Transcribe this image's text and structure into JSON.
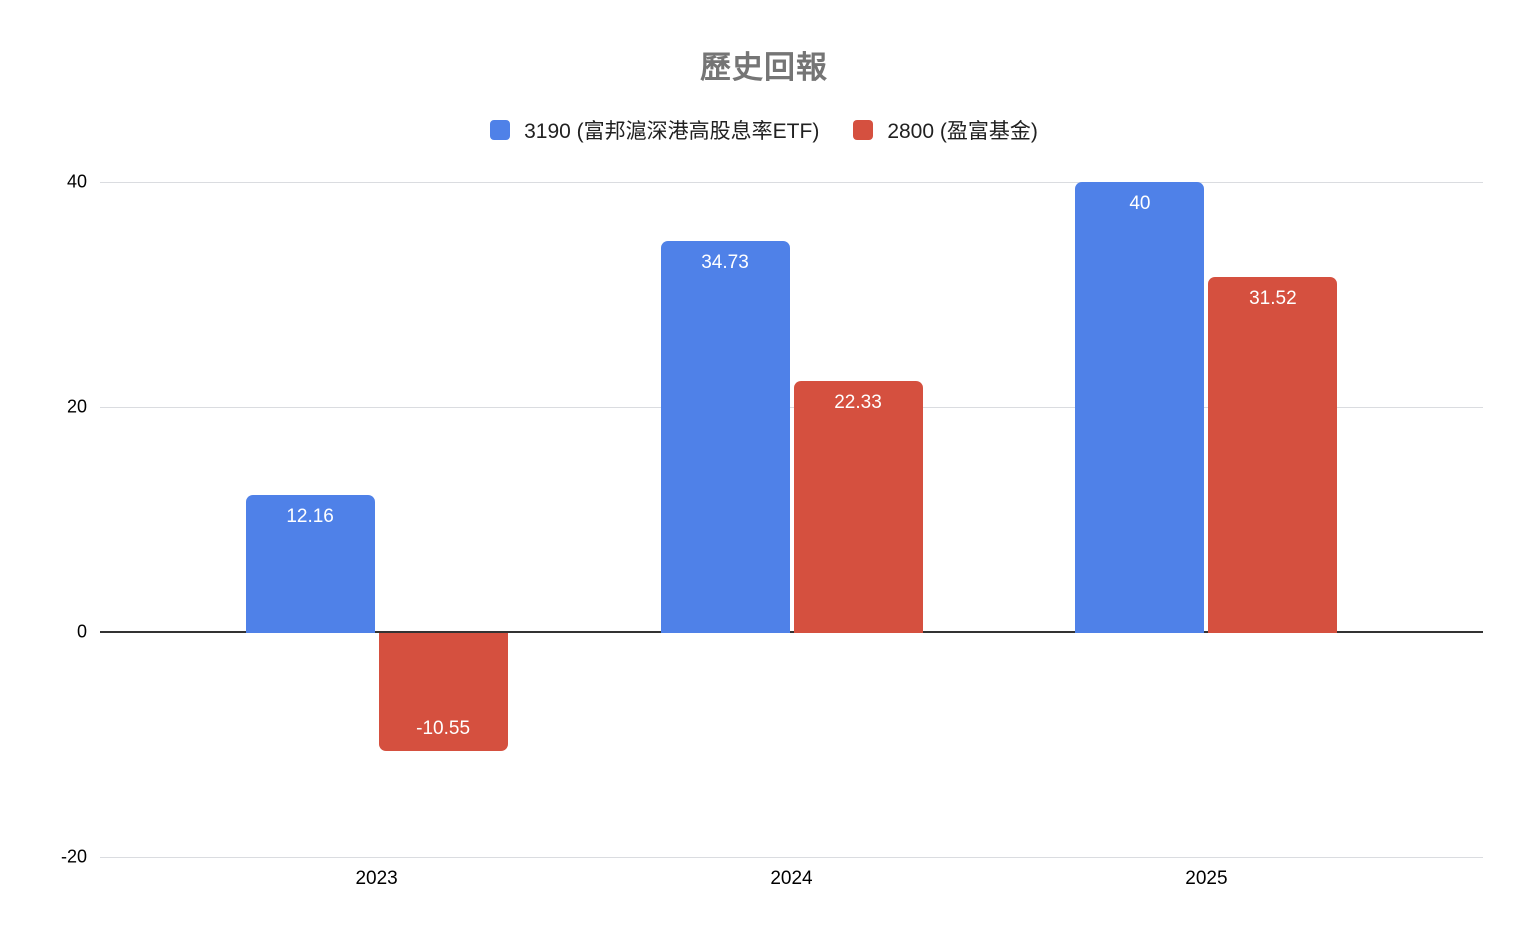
{
  "chart_data": {
    "type": "bar",
    "title": "歷史回報",
    "categories": [
      "2023",
      "2024",
      "2025"
    ],
    "series": [
      {
        "name": "3190 (富邦滬深港高股息率ETF)",
        "short_name": "3190",
        "color": "#4f81e8",
        "values": [
          12.16,
          34.73,
          40
        ],
        "value_labels": [
          "12.16",
          "34.73",
          "40"
        ]
      },
      {
        "name": "2800 (盈富基金)",
        "short_name": "2800",
        "color": "#d5503f",
        "values": [
          -10.55,
          22.33,
          31.52
        ],
        "value_labels": [
          "-10.55",
          "22.33",
          "31.52"
        ]
      }
    ],
    "xlabel": "",
    "ylabel": "",
    "y_ticks": [
      40,
      20,
      0,
      -20
    ],
    "ylim": [
      -20,
      40
    ],
    "grid": true,
    "legend_position": "top"
  },
  "colors": {
    "background": "#ffffff",
    "title_text": "#757575",
    "axis_text": "#000000",
    "gridline": "#dadce0",
    "zero_line": "#333333",
    "bar_value_text": "#ffffff"
  }
}
